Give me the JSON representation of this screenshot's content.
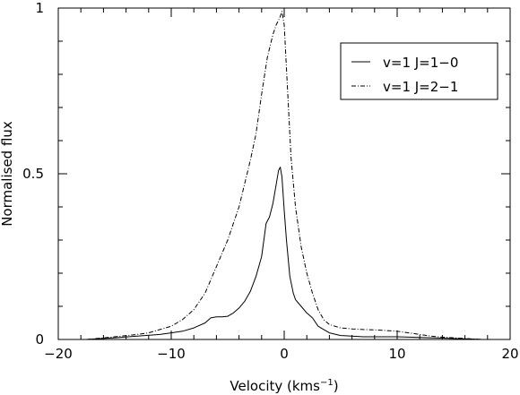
{
  "chart_data": {
    "type": "line",
    "title": "",
    "xlabel": "Velocity (kms",
    "xlabel_sup": "−1",
    "xlabel_end": ")",
    "ylabel": "Normalised flux",
    "xlim": [
      -20,
      20
    ],
    "ylim": [
      0,
      1
    ],
    "x_ticks": [
      -20,
      -10,
      0,
      10,
      20
    ],
    "x_tick_labels": [
      "−20",
      "−10",
      "0",
      "10",
      "20"
    ],
    "y_ticks": [
      0,
      0.5,
      1
    ],
    "y_tick_labels": [
      "0",
      "0.5",
      "1"
    ],
    "grid": false,
    "legend_position": "top-right",
    "series": [
      {
        "name": "v=1  J=1−0",
        "style": "solid",
        "color": "#000000",
        "x": [
          -17.5,
          -15,
          -13,
          -11,
          -10,
          -9,
          -8,
          -7,
          -6.5,
          -6,
          -5.5,
          -5,
          -4.5,
          -4,
          -3.5,
          -3,
          -2.5,
          -2,
          -1.6,
          -1.3,
          -1,
          -0.7,
          -0.5,
          -0.35,
          -0.2,
          0,
          0.2,
          0.5,
          0.8,
          1,
          1.5,
          2,
          2.5,
          3,
          3.5,
          4,
          5,
          6,
          7,
          8,
          10,
          12,
          14,
          16,
          17.5
        ],
        "y": [
          0.0,
          0.005,
          0.01,
          0.015,
          0.02,
          0.025,
          0.035,
          0.05,
          0.065,
          0.068,
          0.068,
          0.07,
          0.08,
          0.095,
          0.115,
          0.145,
          0.19,
          0.25,
          0.35,
          0.37,
          0.41,
          0.47,
          0.51,
          0.52,
          0.49,
          0.39,
          0.3,
          0.19,
          0.14,
          0.12,
          0.1,
          0.08,
          0.065,
          0.04,
          0.03,
          0.02,
          0.012,
          0.01,
          0.008,
          0.008,
          0.008,
          0.006,
          0.004,
          0.002,
          0.0
        ]
      },
      {
        "name": "v=1  J=2−1",
        "style": "dashdot",
        "color": "#000000",
        "x": [
          -17.5,
          -15,
          -13,
          -12,
          -11,
          -10,
          -9,
          -8,
          -7,
          -6,
          -5,
          -4,
          -3,
          -2.5,
          -2,
          -1.5,
          -1,
          -0.7,
          -0.4,
          -0.2,
          0,
          0.3,
          0.6,
          1,
          1.5,
          2,
          2.5,
          3,
          3.5,
          4,
          5,
          6,
          7,
          8,
          9,
          10,
          11,
          12,
          13,
          14,
          16,
          17.5
        ],
        "y": [
          0.0,
          0.008,
          0.015,
          0.02,
          0.03,
          0.04,
          0.06,
          0.09,
          0.14,
          0.22,
          0.3,
          0.4,
          0.54,
          0.62,
          0.74,
          0.85,
          0.92,
          0.95,
          0.97,
          0.99,
          0.95,
          0.75,
          0.55,
          0.4,
          0.28,
          0.2,
          0.14,
          0.09,
          0.06,
          0.045,
          0.035,
          0.032,
          0.03,
          0.029,
          0.027,
          0.025,
          0.02,
          0.015,
          0.01,
          0.007,
          0.003,
          0.0
        ]
      }
    ]
  }
}
